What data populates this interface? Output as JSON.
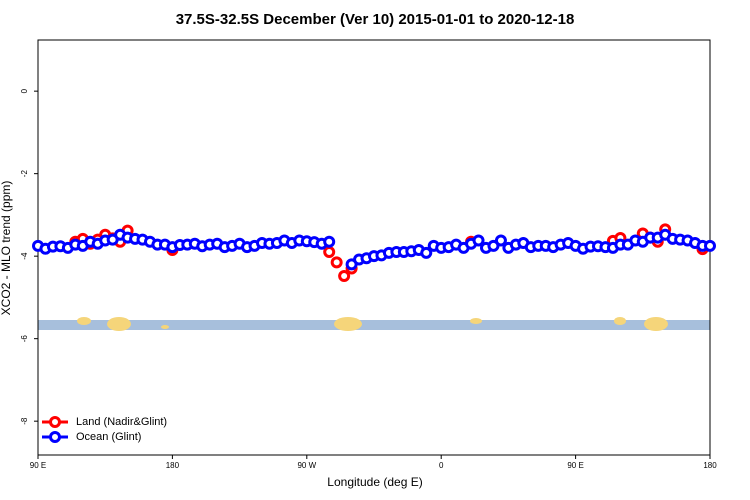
{
  "chart_data": {
    "type": "scatter",
    "title": "37.5S-32.5S December (Ver 10)   2015-01-01 to 2020-12-18",
    "x_label": "Longitude (deg E)",
    "y_label": "XCO2 - MLO trend (ppm)",
    "xlim": [
      90,
      540
    ],
    "ylim": [
      -8.82,
      1.24
    ],
    "xticks": [
      {
        "value": 90,
        "label": "90 E"
      },
      180,
      {
        "value": 270,
        "label": "90 W"
      },
      {
        "value": 360,
        "label": "0"
      },
      {
        "value": 450,
        "label": "90 E"
      },
      {
        "value": 540,
        "label": "180"
      }
    ],
    "yticks": [
      0,
      -2,
      -4,
      -6,
      -8
    ],
    "legend": "bottom-left",
    "series": [
      {
        "name": "Land (Nadir&Glint)",
        "color": "#ff0000",
        "x": [
          115,
          120,
          125,
          130,
          135,
          140,
          145,
          150,
          180,
          285,
          290,
          295,
          300,
          380,
          475,
          480,
          495,
          500,
          505,
          510,
          535
        ],
        "values": [
          -3.65,
          -3.58,
          -3.7,
          -3.6,
          -3.48,
          -3.57,
          -3.65,
          -3.38,
          -3.85,
          -3.9,
          -4.15,
          -4.48,
          -4.3,
          -3.65,
          -3.63,
          -3.56,
          -3.45,
          -3.55,
          -3.65,
          -3.35,
          -3.83
        ]
      },
      {
        "name": "Ocean (Glint)",
        "color": "#0000ff",
        "x": [
          90,
          95,
          100,
          105,
          110,
          115,
          120,
          125,
          130,
          135,
          140,
          145,
          150,
          155,
          160,
          165,
          170,
          175,
          180,
          185,
          190,
          195,
          200,
          205,
          210,
          215,
          220,
          225,
          230,
          235,
          240,
          245,
          250,
          255,
          260,
          265,
          270,
          275,
          280,
          285,
          290,
          295,
          300,
          305,
          310,
          315,
          320,
          325,
          330,
          335,
          340,
          345,
          350,
          355,
          360,
          365,
          370,
          375,
          380,
          385,
          390,
          395,
          400,
          405,
          410,
          415,
          420,
          425,
          430,
          435,
          440,
          445,
          450,
          455,
          460,
          465,
          470,
          475,
          480,
          485,
          490,
          495,
          500,
          505,
          510,
          515,
          520,
          525,
          530,
          535,
          540
        ],
        "values": [
          -3.75,
          -3.82,
          -3.77,
          -3.76,
          -3.8,
          -3.72,
          -3.75,
          -3.65,
          -3.7,
          -3.62,
          -3.6,
          -3.48,
          -3.55,
          -3.58,
          -3.6,
          -3.65,
          -3.72,
          -3.72,
          -3.78,
          -3.73,
          -3.72,
          -3.7,
          -3.76,
          -3.72,
          -3.7,
          -3.78,
          -3.75,
          -3.7,
          -3.78,
          -3.75,
          -3.68,
          -3.7,
          -3.68,
          -3.62,
          -3.68,
          -3.62,
          -3.64,
          -3.66,
          -3.7,
          -3.65,
          null,
          null,
          -4.2,
          -4.08,
          -4.05,
          -4.0,
          -3.98,
          -3.92,
          -3.9,
          -3.9,
          -3.88,
          -3.85,
          -3.92,
          -3.75,
          -3.8,
          -3.78,
          -3.72,
          -3.8,
          -3.7,
          -3.62,
          -3.8,
          -3.75,
          -3.62,
          -3.8,
          -3.72,
          -3.68,
          -3.78,
          -3.75,
          -3.75,
          -3.78,
          -3.72,
          -3.68,
          -3.75,
          -3.82,
          -3.77,
          -3.76,
          -3.78,
          -3.8,
          -3.72,
          -3.72,
          -3.62,
          -3.65,
          -3.55,
          -3.55,
          -3.48,
          -3.58,
          -3.6,
          -3.62,
          -3.68,
          -3.75,
          -3.75
        ]
      }
    ]
  }
}
